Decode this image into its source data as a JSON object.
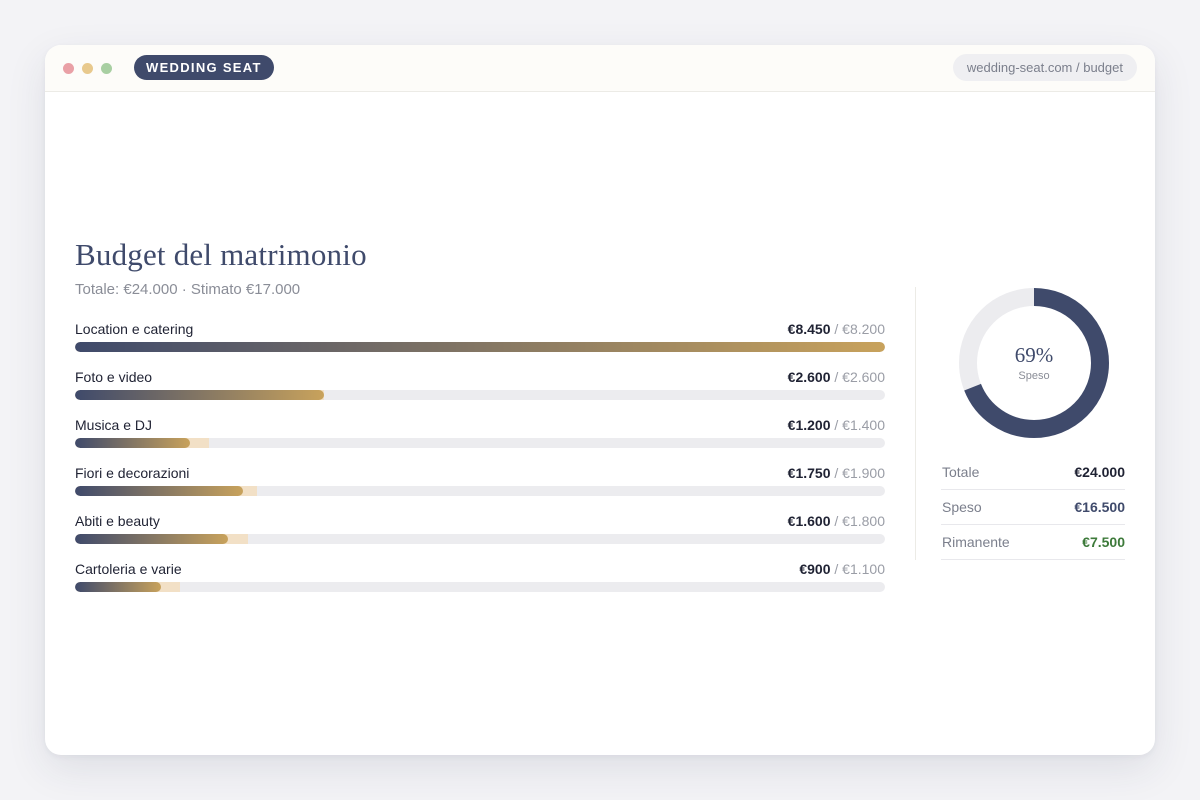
{
  "window": {
    "brand": "WEDDING SEAT",
    "url": "wedding-seat.com / budget"
  },
  "page": {
    "title": "Budget del matrimonio",
    "subtitle": "Totale: €24.000 · Stimato €17.000"
  },
  "budget_items": [
    {
      "label": "Location e catering",
      "spent": "€8.450",
      "estimate": "€8.200",
      "spent_value": 8450,
      "estimate_value": 8200
    },
    {
      "label": "Foto e video",
      "spent": "€2.600",
      "estimate": "€2.600",
      "spent_value": 2600,
      "estimate_value": 2600
    },
    {
      "label": "Musica e DJ",
      "spent": "€1.200",
      "estimate": "€1.400",
      "spent_value": 1200,
      "estimate_value": 1400
    },
    {
      "label": "Fiori e decorazioni",
      "spent": "€1.750",
      "estimate": "€1.900",
      "spent_value": 1750,
      "estimate_value": 1900
    },
    {
      "label": "Abiti e beauty",
      "spent": "€1.600",
      "estimate": "€1.800",
      "spent_value": 1600,
      "estimate_value": 1800
    },
    {
      "label": "Cartoleria e varie",
      "spent": "€900",
      "estimate": "€1.100",
      "spent_value": 900,
      "estimate_value": 1100
    }
  ],
  "donut": {
    "percent_label": "69%",
    "sub_label": "Speso",
    "fraction": 0.69
  },
  "summary": [
    {
      "label": "Totale",
      "value": "€24.000",
      "color": "#1f2233"
    },
    {
      "label": "Speso",
      "value": "€16.500",
      "color": "#3f4a6b"
    },
    {
      "label": "Rimanente",
      "value": "€7.500",
      "color": "#3d7a3a"
    }
  ],
  "colors": {
    "navy": "#3f4a6b",
    "gold": "#c8a25c",
    "estimate_tint": "#f2e0c6",
    "track": "#ececef",
    "positive_green": "#3d7a3a"
  }
}
